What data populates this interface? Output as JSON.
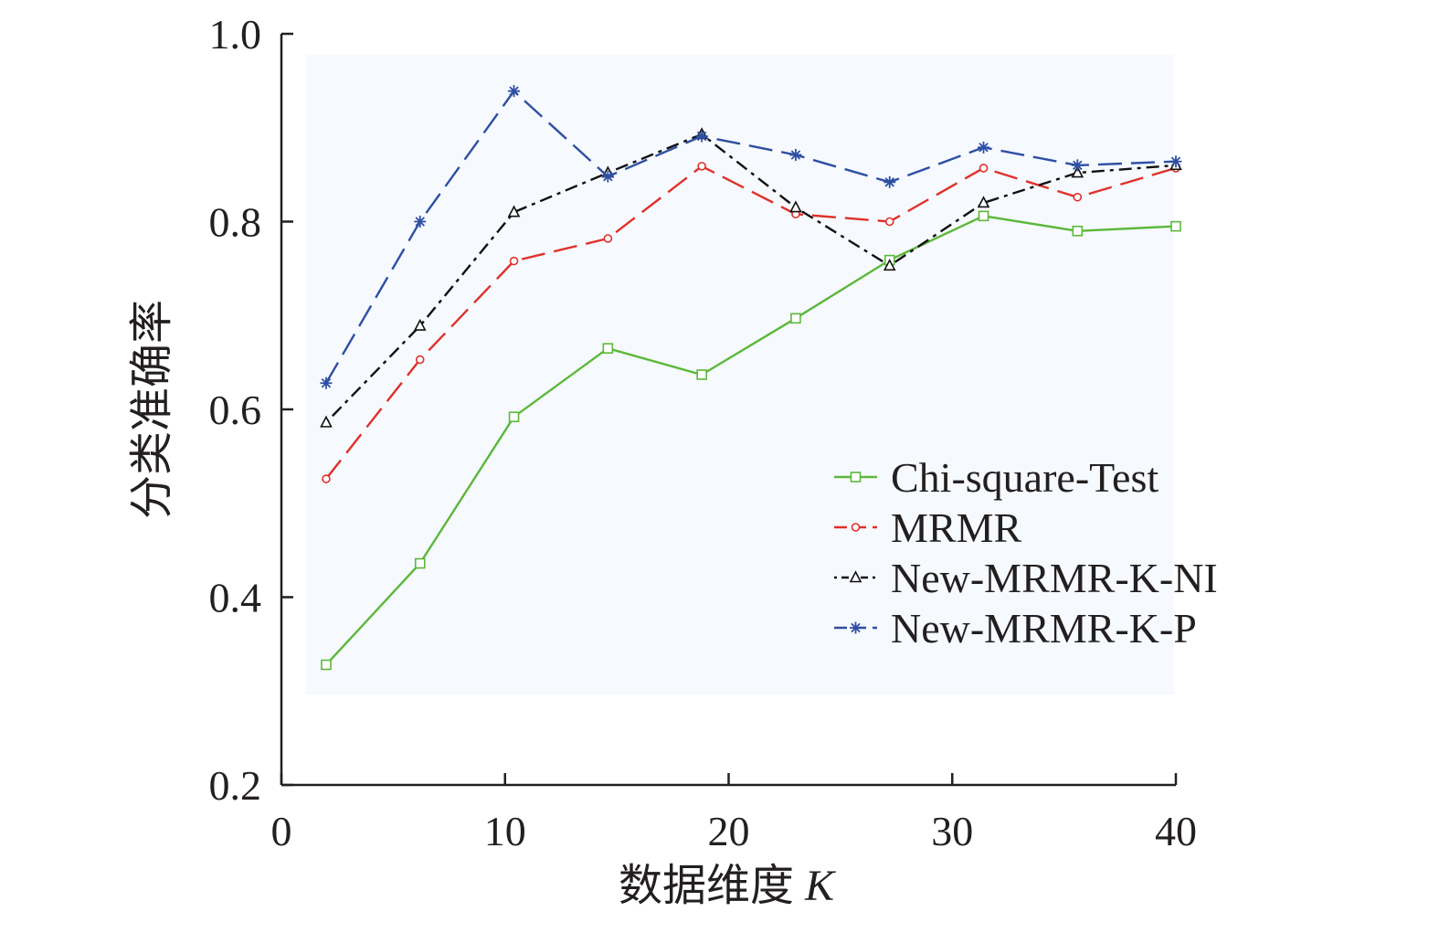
{
  "chart_data": {
    "type": "line",
    "title": "",
    "xlabel": "数据维度",
    "xlabel_var": "K",
    "ylabel": "分类准确率",
    "xlim": [
      0,
      40
    ],
    "ylim": [
      0.2,
      1.0
    ],
    "xticks": [
      0,
      10,
      20,
      30,
      40
    ],
    "xtick_labels": [
      "0",
      "10",
      "20",
      "30",
      "40"
    ],
    "yticks": [
      0.2,
      0.4,
      0.6,
      0.8,
      1.0
    ],
    "ytick_labels": [
      "0.2",
      "0.4",
      "0.6",
      "0.8",
      "1.0"
    ],
    "grid": false,
    "legend_position": "center-right",
    "x": [
      2,
      6.2,
      10.4,
      14.6,
      18.8,
      23,
      27.2,
      31.4,
      35.6,
      40
    ],
    "series": [
      {
        "name": "Chi-square-Test",
        "color": "#5cb83a",
        "dash": "solid",
        "marker": "square",
        "values": [
          0.328,
          0.436,
          0.592,
          0.665,
          0.637,
          0.697,
          0.759,
          0.806,
          0.79,
          0.795
        ]
      },
      {
        "name": "MRMR",
        "color": "#e0302a",
        "dash": "longdash",
        "marker": "circle",
        "values": [
          0.526,
          0.653,
          0.758,
          0.782,
          0.859,
          0.808,
          0.8,
          0.857,
          0.826,
          0.857
        ]
      },
      {
        "name": "New-MRMR-K-NI",
        "color": "#111111",
        "dash": "dashdot",
        "marker": "triangle",
        "values": [
          0.586,
          0.689,
          0.81,
          0.852,
          0.893,
          0.815,
          0.753,
          0.82,
          0.852,
          0.86
        ]
      },
      {
        "name": "New-MRMR-K-P",
        "color": "#2e4fa3",
        "dash": "longdash",
        "marker": "asterisk",
        "values": [
          0.628,
          0.8,
          0.939,
          0.848,
          0.891,
          0.871,
          0.842,
          0.879,
          0.86,
          0.864
        ]
      }
    ]
  }
}
